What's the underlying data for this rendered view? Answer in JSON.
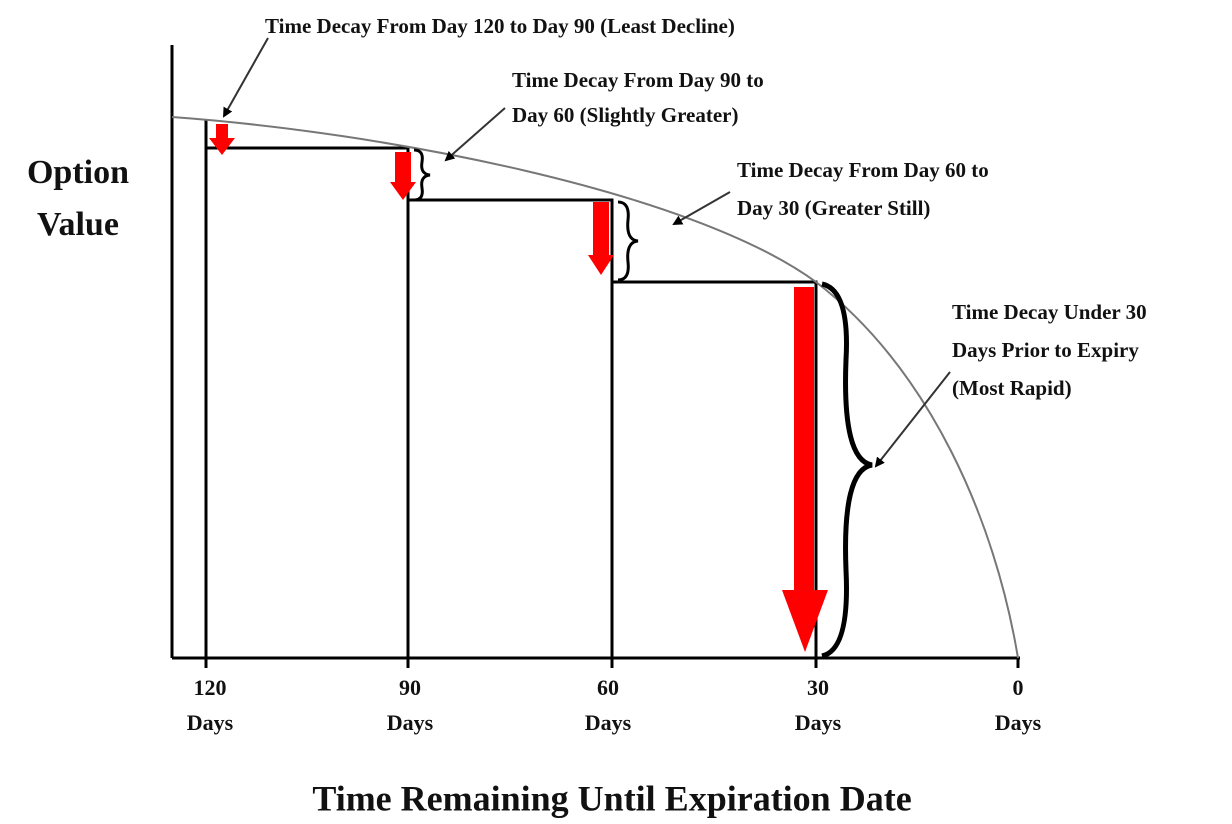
{
  "y_axis_label": [
    "Option",
    "Value"
  ],
  "x_axis_label": "Time Remaining Until Expiration Date",
  "ticks": [
    {
      "number": "120",
      "unit": "Days"
    },
    {
      "number": "90",
      "unit": "Days"
    },
    {
      "number": "60",
      "unit": "Days"
    },
    {
      "number": "30",
      "unit": "Days"
    },
    {
      "number": "0",
      "unit": "Days"
    }
  ],
  "annotations": [
    [
      "Time Decay From Day 120 to Day 90 (Least Decline)"
    ],
    [
      "Time Decay From Day 90 to",
      "Day 60 (Slightly Greater)"
    ],
    [
      "Time Decay From Day 60 to",
      "Day 30 (Greater Still)"
    ],
    [
      "Time Decay Under 30",
      "Days Prior to Expiry",
      "(Most Rapid)"
    ]
  ]
}
